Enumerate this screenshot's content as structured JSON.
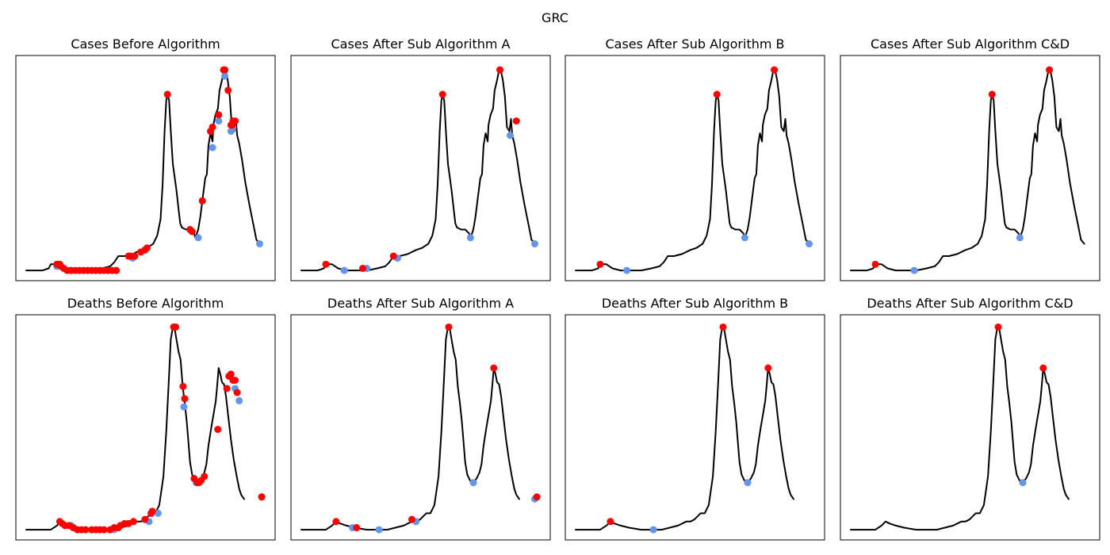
{
  "figure": {
    "suptitle": "GRC"
  },
  "colors": {
    "line": "#000000",
    "peak": "#ff0000",
    "trough": "#6495ed"
  },
  "chart_data": [
    {
      "type": "line",
      "title": "Cases Before Algorithm",
      "xlabel": "",
      "ylabel": "",
      "x_ticks": "none",
      "y_ticks": "none",
      "xlim": [
        0,
        600
      ],
      "ylim": [
        -0.05,
        1.05
      ],
      "curve_id": "cases",
      "peaks": [
        [
          75,
          0.03
        ],
        [
          78,
          0.03
        ],
        [
          82,
          0.03
        ],
        [
          85,
          0.02
        ],
        [
          92,
          0.01
        ],
        [
          100,
          0.0
        ],
        [
          110,
          0.0
        ],
        [
          120,
          0.0
        ],
        [
          130,
          0.0
        ],
        [
          140,
          0.0
        ],
        [
          150,
          0.0
        ],
        [
          160,
          0.0
        ],
        [
          170,
          0.0
        ],
        [
          180,
          0.0
        ],
        [
          190,
          0.0
        ],
        [
          200,
          0.0
        ],
        [
          210,
          0.0
        ],
        [
          220,
          0.0
        ],
        [
          250,
          0.07
        ],
        [
          255,
          0.07
        ],
        [
          265,
          0.07
        ],
        [
          280,
          0.09
        ],
        [
          290,
          0.1
        ],
        [
          295,
          0.11
        ],
        [
          345,
          0.86
        ],
        [
          400,
          0.2
        ],
        [
          405,
          0.19
        ],
        [
          430,
          0.34
        ],
        [
          450,
          0.68
        ],
        [
          455,
          0.7
        ],
        [
          470,
          0.76
        ],
        [
          482,
          0.98
        ],
        [
          485,
          0.98
        ],
        [
          493,
          0.88
        ],
        [
          500,
          0.71
        ],
        [
          503,
          0.71
        ],
        [
          505,
          0.73
        ],
        [
          510,
          0.73
        ]
      ],
      "troughs": [
        [
          75,
          0.02
        ],
        [
          108,
          0.0
        ],
        [
          200,
          0.0
        ],
        [
          260,
          0.06
        ],
        [
          420,
          0.16
        ],
        [
          455,
          0.6
        ],
        [
          470,
          0.73
        ],
        [
          485,
          0.95
        ],
        [
          500,
          0.68
        ],
        [
          505,
          0.7
        ],
        [
          570,
          0.13
        ]
      ]
    },
    {
      "type": "line",
      "title": "Cases After Sub Algorithm A",
      "xlabel": "",
      "ylabel": "",
      "x_ticks": "none",
      "y_ticks": "none",
      "xlim": [
        0,
        600
      ],
      "ylim": [
        -0.05,
        1.05
      ],
      "curve_id": "cases",
      "peaks": [
        [
          60,
          0.03
        ],
        [
          150,
          0.01
        ],
        [
          225,
          0.07
        ],
        [
          345,
          0.86
        ],
        [
          485,
          0.98
        ],
        [
          525,
          0.73
        ]
      ],
      "troughs": [
        [
          105,
          0.0
        ],
        [
          160,
          0.01
        ],
        [
          235,
          0.06
        ],
        [
          413,
          0.16
        ],
        [
          510,
          0.66
        ],
        [
          570,
          0.13
        ]
      ]
    },
    {
      "type": "line",
      "title": "Cases After Sub Algorithm B",
      "xlabel": "",
      "ylabel": "",
      "x_ticks": "none",
      "y_ticks": "none",
      "xlim": [
        0,
        600
      ],
      "ylim": [
        -0.05,
        1.05
      ],
      "curve_id": "cases",
      "peaks": [
        [
          60,
          0.03
        ],
        [
          345,
          0.86
        ],
        [
          485,
          0.98
        ]
      ],
      "troughs": [
        [
          125,
          0.0
        ],
        [
          413,
          0.16
        ],
        [
          570,
          0.13
        ]
      ]
    },
    {
      "type": "line",
      "title": "Cases After Sub Algorithm C&D",
      "xlabel": "",
      "ylabel": "",
      "x_ticks": "none",
      "y_ticks": "none",
      "xlim": [
        0,
        600
      ],
      "ylim": [
        -0.05,
        1.05
      ],
      "curve_id": "cases",
      "peaks": [
        [
          60,
          0.03
        ],
        [
          345,
          0.86
        ],
        [
          485,
          0.98
        ]
      ],
      "troughs": [
        [
          155,
          0.0
        ],
        [
          413,
          0.16
        ]
      ]
    },
    {
      "type": "line",
      "title": "Deaths Before Algorithm",
      "xlabel": "",
      "ylabel": "",
      "x_ticks": "none",
      "y_ticks": "none",
      "xlim": [
        0,
        600
      ],
      "ylim": [
        -0.05,
        1.05
      ],
      "curve_id": "deaths",
      "peaks": [
        [
          82,
          0.04
        ],
        [
          88,
          0.03
        ],
        [
          95,
          0.02
        ],
        [
          105,
          0.02
        ],
        [
          115,
          0.01
        ],
        [
          125,
          0.0
        ],
        [
          135,
          0.0
        ],
        [
          145,
          0.0
        ],
        [
          160,
          0.0
        ],
        [
          170,
          0.0
        ],
        [
          180,
          0.0
        ],
        [
          190,
          0.0
        ],
        [
          205,
          0.0
        ],
        [
          215,
          0.01
        ],
        [
          225,
          0.01
        ],
        [
          230,
          0.02
        ],
        [
          240,
          0.03
        ],
        [
          250,
          0.03
        ],
        [
          262,
          0.04
        ],
        [
          290,
          0.05
        ],
        [
          305,
          0.08
        ],
        [
          308,
          0.09
        ],
        [
          360,
          0.99
        ],
        [
          365,
          0.99
        ],
        [
          383,
          0.7
        ],
        [
          387,
          0.64
        ],
        [
          410,
          0.25
        ],
        [
          418,
          0.23
        ],
        [
          422,
          0.23
        ],
        [
          427,
          0.24
        ],
        [
          435,
          0.26
        ],
        [
          468,
          0.49
        ],
        [
          490,
          0.69
        ],
        [
          495,
          0.75
        ],
        [
          500,
          0.76
        ],
        [
          505,
          0.73
        ],
        [
          510,
          0.73
        ],
        [
          515,
          0.67
        ],
        [
          575,
          0.16
        ]
      ],
      "troughs": [
        [
          110,
          0.02
        ],
        [
          215,
          0.0
        ],
        [
          300,
          0.04
        ],
        [
          322,
          0.08
        ],
        [
          385,
          0.6
        ],
        [
          415,
          0.23
        ],
        [
          510,
          0.69
        ],
        [
          520,
          0.63
        ],
        [
          575,
          0.16
        ]
      ]
    },
    {
      "type": "line",
      "title": "Deaths After Sub Algorithm A",
      "xlabel": "",
      "ylabel": "",
      "x_ticks": "none",
      "y_ticks": "none",
      "xlim": [
        0,
        600
      ],
      "ylim": [
        -0.05,
        1.05
      ],
      "curve_id": "deaths",
      "peaks": [
        [
          85,
          0.04
        ],
        [
          135,
          0.01
        ],
        [
          270,
          0.05
        ],
        [
          360,
          0.99
        ],
        [
          470,
          0.79
        ],
        [
          575,
          0.16
        ]
      ],
      "troughs": [
        [
          125,
          0.01
        ],
        [
          190,
          0.0
        ],
        [
          280,
          0.04
        ],
        [
          420,
          0.23
        ],
        [
          570,
          0.15
        ]
      ]
    },
    {
      "type": "line",
      "title": "Deaths After Sub Algorithm B",
      "xlabel": "",
      "ylabel": "",
      "x_ticks": "none",
      "y_ticks": "none",
      "xlim": [
        0,
        600
      ],
      "ylim": [
        -0.05,
        1.05
      ],
      "curve_id": "deaths",
      "peaks": [
        [
          85,
          0.04
        ],
        [
          360,
          0.99
        ],
        [
          470,
          0.79
        ]
      ],
      "troughs": [
        [
          190,
          0.0
        ],
        [
          420,
          0.23
        ]
      ]
    },
    {
      "type": "line",
      "title": "Deaths After Sub Algorithm C&D",
      "xlabel": "",
      "ylabel": "",
      "x_ticks": "none",
      "y_ticks": "none",
      "xlim": [
        0,
        600
      ],
      "ylim": [
        -0.05,
        1.05
      ],
      "curve_id": "deaths",
      "peaks": [
        [
          360,
          0.99
        ],
        [
          470,
          0.79
        ]
      ],
      "troughs": [
        [
          420,
          0.23
        ]
      ]
    }
  ],
  "curves": {
    "cases": [
      [
        0,
        0.0
      ],
      [
        40,
        0.0
      ],
      [
        55,
        0.01
      ],
      [
        60,
        0.03
      ],
      [
        75,
        0.03
      ],
      [
        90,
        0.01
      ],
      [
        110,
        0.0
      ],
      [
        130,
        0.0
      ],
      [
        160,
        0.0
      ],
      [
        185,
        0.01
      ],
      [
        205,
        0.02
      ],
      [
        215,
        0.04
      ],
      [
        225,
        0.07
      ],
      [
        240,
        0.07
      ],
      [
        260,
        0.08
      ],
      [
        280,
        0.1
      ],
      [
        295,
        0.11
      ],
      [
        310,
        0.13
      ],
      [
        320,
        0.17
      ],
      [
        328,
        0.25
      ],
      [
        333,
        0.42
      ],
      [
        338,
        0.68
      ],
      [
        342,
        0.83
      ],
      [
        345,
        0.86
      ],
      [
        349,
        0.83
      ],
      [
        353,
        0.68
      ],
      [
        358,
        0.52
      ],
      [
        363,
        0.45
      ],
      [
        367,
        0.39
      ],
      [
        372,
        0.3
      ],
      [
        376,
        0.23
      ],
      [
        380,
        0.21
      ],
      [
        390,
        0.2
      ],
      [
        400,
        0.2
      ],
      [
        410,
        0.18
      ],
      [
        413,
        0.16
      ],
      [
        420,
        0.2
      ],
      [
        425,
        0.26
      ],
      [
        430,
        0.34
      ],
      [
        437,
        0.45
      ],
      [
        441,
        0.47
      ],
      [
        445,
        0.61
      ],
      [
        450,
        0.67
      ],
      [
        455,
        0.63
      ],
      [
        457,
        0.71
      ],
      [
        462,
        0.76
      ],
      [
        468,
        0.79
      ],
      [
        472,
        0.88
      ],
      [
        478,
        0.93
      ],
      [
        483,
        0.98
      ],
      [
        488,
        0.97
      ],
      [
        492,
        0.93
      ],
      [
        497,
        0.85
      ],
      [
        502,
        0.7
      ],
      [
        508,
        0.68
      ],
      [
        512,
        0.74
      ],
      [
        515,
        0.66
      ],
      [
        520,
        0.62
      ],
      [
        527,
        0.54
      ],
      [
        535,
        0.43
      ],
      [
        545,
        0.32
      ],
      [
        555,
        0.22
      ],
      [
        562,
        0.15
      ],
      [
        570,
        0.13
      ]
    ],
    "deaths": [
      [
        0,
        0.0
      ],
      [
        60,
        0.0
      ],
      [
        75,
        0.02
      ],
      [
        85,
        0.04
      ],
      [
        95,
        0.03
      ],
      [
        110,
        0.02
      ],
      [
        130,
        0.01
      ],
      [
        160,
        0.0
      ],
      [
        190,
        0.0
      ],
      [
        210,
        0.0
      ],
      [
        230,
        0.01
      ],
      [
        250,
        0.02
      ],
      [
        270,
        0.04
      ],
      [
        280,
        0.04
      ],
      [
        290,
        0.05
      ],
      [
        305,
        0.08
      ],
      [
        315,
        0.08
      ],
      [
        325,
        0.12
      ],
      [
        335,
        0.26
      ],
      [
        342,
        0.48
      ],
      [
        348,
        0.72
      ],
      [
        353,
        0.93
      ],
      [
        358,
        0.99
      ],
      [
        362,
        0.99
      ],
      [
        366,
        0.94
      ],
      [
        372,
        0.87
      ],
      [
        377,
        0.83
      ],
      [
        382,
        0.7
      ],
      [
        387,
        0.62
      ],
      [
        392,
        0.53
      ],
      [
        396,
        0.43
      ],
      [
        400,
        0.33
      ],
      [
        405,
        0.27
      ],
      [
        412,
        0.24
      ],
      [
        420,
        0.23
      ],
      [
        428,
        0.25
      ],
      [
        435,
        0.28
      ],
      [
        440,
        0.32
      ],
      [
        445,
        0.41
      ],
      [
        452,
        0.5
      ],
      [
        458,
        0.57
      ],
      [
        463,
        0.63
      ],
      [
        467,
        0.72
      ],
      [
        470,
        0.79
      ],
      [
        474,
        0.76
      ],
      [
        478,
        0.72
      ],
      [
        483,
        0.71
      ],
      [
        488,
        0.65
      ],
      [
        493,
        0.56
      ],
      [
        500,
        0.44
      ],
      [
        507,
        0.34
      ],
      [
        514,
        0.26
      ],
      [
        520,
        0.2
      ],
      [
        525,
        0.17
      ],
      [
        532,
        0.15
      ]
    ]
  }
}
